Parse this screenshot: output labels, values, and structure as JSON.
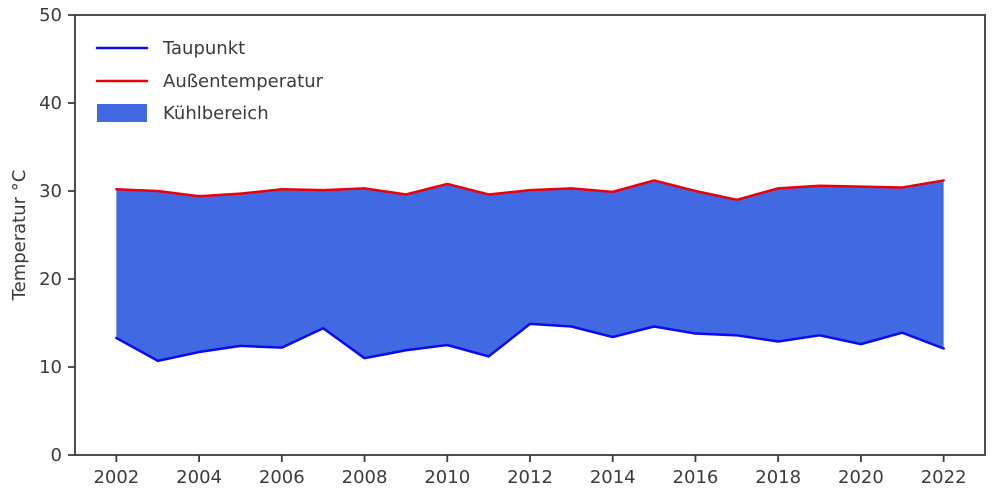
{
  "chart": {
    "ylabel": "Temperatur °C",
    "legend_items": [
      {
        "label": "Taupunkt",
        "type": "line",
        "color": "#0b0bf0"
      },
      {
        "label": "Außentemperatur",
        "type": "line",
        "color": "#e8000b"
      },
      {
        "label": "Kühlbereich",
        "type": "patch",
        "color": "#4169e1"
      }
    ]
  },
  "chart_data": {
    "type": "area",
    "title": "",
    "xlabel": "",
    "ylabel": "Temperatur °C",
    "x": [
      2002,
      2003,
      2004,
      2005,
      2006,
      2007,
      2008,
      2009,
      2010,
      2011,
      2012,
      2013,
      2014,
      2015,
      2016,
      2017,
      2018,
      2019,
      2020,
      2021,
      2022
    ],
    "series": [
      {
        "name": "Taupunkt",
        "color": "#0b0bf0",
        "values": [
          13.3,
          10.7,
          11.7,
          12.4,
          12.2,
          14.4,
          11.0,
          11.9,
          12.5,
          11.2,
          14.9,
          14.6,
          13.4,
          14.6,
          13.8,
          13.6,
          12.9,
          13.6,
          12.6,
          13.9,
          12.1
        ]
      },
      {
        "name": "Außentemperatur",
        "color": "#e8000b",
        "values": [
          30.2,
          30.0,
          29.4,
          29.7,
          30.2,
          30.1,
          30.3,
          29.6,
          30.8,
          29.6,
          30.1,
          30.3,
          29.9,
          31.2,
          30.0,
          29.0,
          30.3,
          30.6,
          30.5,
          30.4,
          31.2
        ]
      }
    ],
    "fill_between": {
      "name": "Kühlbereich",
      "color": "#4169e1",
      "lower": "Taupunkt",
      "upper": "Außentemperatur"
    },
    "ylim": [
      0,
      50
    ],
    "x_axis_range": [
      2001,
      2023
    ],
    "y_ticks": [
      0,
      10,
      20,
      30,
      40,
      50
    ],
    "x_ticks": [
      2002,
      2004,
      2006,
      2008,
      2010,
      2012,
      2014,
      2016,
      2018,
      2020,
      2022
    ],
    "grid": false,
    "legend_position": "upper-left",
    "axis_color": "#3b3b3b",
    "line_width": 2.5
  }
}
